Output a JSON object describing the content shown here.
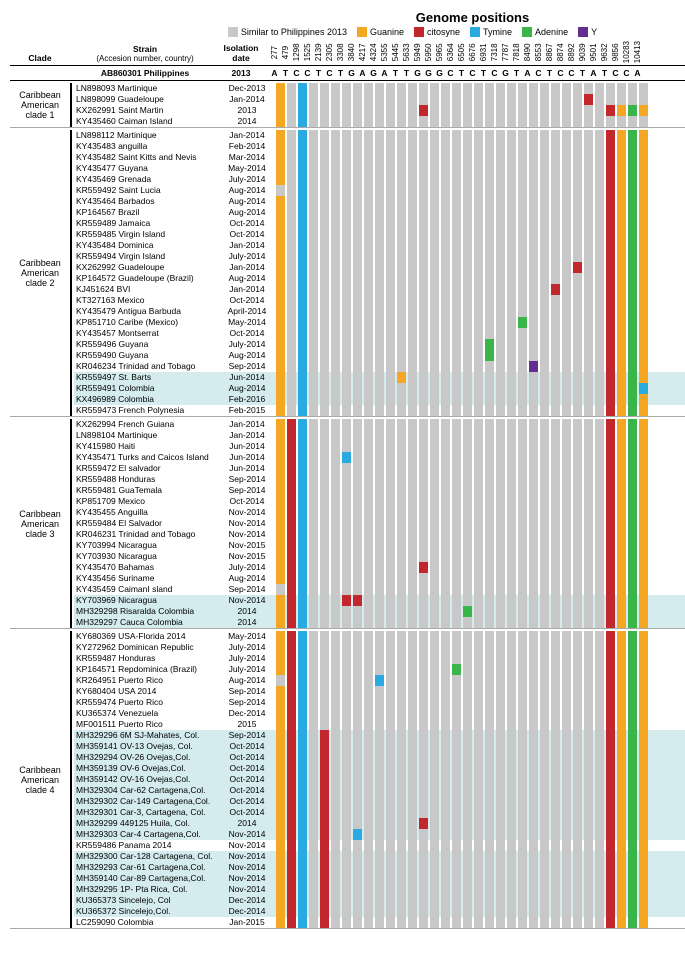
{
  "title": "Genome positions",
  "legend": [
    {
      "label": "Similar to Philippines 2013",
      "color": "#c8c8c8"
    },
    {
      "label": "Guanine",
      "color": "#f5a623"
    },
    {
      "label": "citosyne",
      "color": "#c1272d"
    },
    {
      "label": "Tymine",
      "color": "#29abe2"
    },
    {
      "label": "Adenine",
      "color": "#39b54a"
    },
    {
      "label": "Y",
      "color": "#662d91"
    }
  ],
  "colors": {
    "S": "#c8c8c8",
    "G": "#f5a623",
    "C": "#c1272d",
    "T": "#29abe2",
    "A": "#39b54a",
    "Y": "#662d91",
    "W": "#ffffff"
  },
  "headers": {
    "clade": "Clade",
    "strain_line1": "Strain",
    "strain_line2": "(Accesion number, country)",
    "date": "Isolation\ndate"
  },
  "positions": [
    "277",
    "479",
    "1298",
    "1525",
    "2139",
    "2305",
    "3308",
    "3840",
    "4217",
    "4324",
    "5355",
    "5445",
    "5633",
    "5949",
    "5950",
    "5965",
    "6364",
    "6505",
    "6676",
    "6931",
    "7318",
    "7787",
    "7818",
    "8490",
    "8553",
    "8867",
    "8874",
    "8892",
    "9039",
    "9501",
    "9632",
    "9856",
    "10283",
    "10413"
  ],
  "reference": {
    "strain": "AB860301 Philippines",
    "date": "2013",
    "letters": [
      "A",
      "T",
      "C",
      "C",
      "T",
      "C",
      "T",
      "G",
      "A",
      "G",
      "A",
      "T",
      "T",
      "G",
      "G",
      "G",
      "C",
      "T",
      "C",
      "T",
      "C",
      "G",
      "T",
      "A",
      "C",
      "T",
      "C",
      "C",
      "T",
      "A",
      "T",
      "C",
      "C",
      "A"
    ]
  },
  "clades": [
    {
      "name": "Caribbean American clade 1",
      "rows": [
        {
          "s": "LN898093  Martinique",
          "d": "Dec-2013",
          "c": "GSTSSSSSSSSSSSSSSSSSSSSSSSSSSSSSSS"
        },
        {
          "s": "LN898099 Guadeloupe",
          "d": "Jan-2014",
          "c": "GSTSSSSSSSSSSSSSSSSSSSSSSSSSCSSSSS"
        },
        {
          "s": "KX262991 Saint Martin",
          "d": "2013",
          "c": "GSTSSSSSSSSSSCSSSSSSSSSSSSSSSSCGAG"
        },
        {
          "s": "KY435460 Caiman Island",
          "d": "2014",
          "c": "GSTSSSSSSSSSSSSSSSSSSSSSSSSSSSSSSS"
        }
      ]
    },
    {
      "name": "Caribbean American clade 2",
      "rows": [
        {
          "s": "LN898112 Martinique",
          "d": "Jan-2014",
          "c": "GSTSSSSSSSSSSSSSSSSSSSSSSSSSSSCGAG"
        },
        {
          "s": "KY435483 anguilla",
          "d": "Feb-2014",
          "c": "GSTSSSSSSSSSSSSSSSSSSSSSSSSSSSCGAG"
        },
        {
          "s": "KY435482 Saint Kitts and Nevis",
          "d": "Mar-2014",
          "c": "GSTSSSSSSSSSSSSSSSSSSSSSSSSSSSCGAG"
        },
        {
          "s": "KY435477 Guyana",
          "d": "May-2014",
          "c": "GSTSSSSSSSSSSSSSSSSSSSSSSSSSSSCGAG"
        },
        {
          "s": "KY435469 Grenada",
          "d": "July-2014",
          "c": "GSTSSSSSSSSSSSSSSSSSSSSSSSSSSSCGAG"
        },
        {
          "s": "KR559492 Saint Lucia",
          "d": "Aug-2014",
          "c": "SSTSSSSSSSSSSSSSSSSSSSSSSSSSSSCGAG"
        },
        {
          "s": "KY435464 Barbados",
          "d": "Aug-2014",
          "c": "GSTSSSSSSSSSSSSSSSSSSSSSSSSSSSCGAG"
        },
        {
          "s": "KP164567 Brazil",
          "d": "Aug-2014",
          "c": "GSTSSSSSSSSSSSSSSSSSSSSSSSSSSSCGAG"
        },
        {
          "s": "KR559489 Jamaica",
          "d": "Oct-2014",
          "c": "GSTSSSSSSSSSSSSSSSSSSSSSSSSSSSCGAG"
        },
        {
          "s": "KR559485 Virgin Island",
          "d": "Oct-2014",
          "c": "GSTSSSSSSSSSSSSSSSSSSSSSSSSSSSCGAG"
        },
        {
          "s": "KY435484 Dominica",
          "d": "Jan-2014",
          "c": "GSTSSSSSSSSSSSSSSSSSSSSSSSSSSSCGAG"
        },
        {
          "s": "KR559494 Virgin Island",
          "d": "July-2014",
          "c": "GSTSSSSSSSSSSSSSSSSSSSSSSSSSSSCGAG"
        },
        {
          "s": "KX262992 Guadeloupe",
          "d": "Jan-2014",
          "c": "GSTSSSSSSSSSSSSSSSSSSSSSSSSCSSCGAG"
        },
        {
          "s": "KP164572 Guadeloupe (Brazil)",
          "d": "Aug-2014",
          "c": "GSTSSSSSSSSSSSSSSSSSSSSSSSSSSSCGAG"
        },
        {
          "s": "KJ451624 BVI",
          "d": "Jan-2014",
          "c": "GSTSSSSSSSSSSSSSSSSSSSSSSCSSSSCGAG"
        },
        {
          "s": "KT327163 Mexico",
          "d": "Oct-2014",
          "c": "GSTSSSSSSSSSSSSSSSSSSSSSSSSSSSCGAG"
        },
        {
          "s": "KY435479 Antigua Barbuda",
          "d": "April-2014",
          "c": "GSTSSSSSSSSSSSSSSSSSSSSSSSSSSSCGAG"
        },
        {
          "s": "KP851710 Caribe (Mexico)",
          "d": "May-2014",
          "c": "GSTSSSSSSSSSSSSSSSSSSSASSSSSSSCGAG"
        },
        {
          "s": "KY435457 Montserrat",
          "d": "Oct-2014",
          "c": "GSTSSSSSSSSSSSSSSSSSSSSSSSSSSSCGAG"
        },
        {
          "s": "KR559496 Guyana",
          "d": "July-2014",
          "c": "GSTSSSSSSSSSSSSSSSSASSSSSSSSSSCGAG"
        },
        {
          "s": "KR559490 Guyana",
          "d": "Aug-2014",
          "c": "GSTSSSSSSSSSSSSSSSSASSSSSSSSSSCGAG"
        },
        {
          "s": "KR046234 Trinidad and Tobago",
          "d": "Sep-2014",
          "c": "GSTSSSSSSSSSSSSSSSSSSSSYSSSSSSCGAG"
        },
        {
          "s": "KR559497 St. Barts",
          "d": "Jun-2014",
          "c": "GSTSSSSSSSSGSSSSSSSSSSSSSSSSSSCGAG",
          "h": true
        },
        {
          "s": "KR559491 Colombia",
          "d": "Aug-2014",
          "c": "GSTSSSSSSSSSSSSSSSSSSSSSSSSSSSCGAT",
          "h": true
        },
        {
          "s": "KX496989 Colombia",
          "d": "Feb-2016",
          "c": "GSTSSSSSSSSSSSSSSSSSSSSSSSSSSSCGAG",
          "h": true
        },
        {
          "s": "KR559473  French Polynesia",
          "d": "Feb-2015",
          "c": "GSTSSSSSSSSSSSSSSSSSSSSSSSSSSSCGAG"
        }
      ]
    },
    {
      "name": "Caribbean American clade 3",
      "rows": [
        {
          "s": "KX262994 French Guiana",
          "d": "Jan-2014",
          "c": "GCTSSSSSSSSSSSSSSSSSSSSSSSSSSSCGAG"
        },
        {
          "s": "LN898104 Martinique",
          "d": "Jan-2014",
          "c": "GCTSSSSSSSSSSSSSSSSSSSSSSSSSSSCGAG"
        },
        {
          "s": "KY415980 Haiti",
          "d": "Jun-2014",
          "c": "GCTSSSSSSSSSSSSSSSSSSSSSSSSSSSCGAG"
        },
        {
          "s": "KY435471 Turks and Caicos Island",
          "d": "Jun-2014",
          "c": "GCTSSSTSSSSSSSSSSSSSSSSSSSSSSSCGAG"
        },
        {
          "s": "KR559472 El salvador",
          "d": "Jun-2014",
          "c": "GCTSSSSSSSSSSSSSSSSSSSSSSSSSSSCGAG"
        },
        {
          "s": "KR559488 Honduras",
          "d": "Sep-2014",
          "c": "GCTSSSSSSSSSSSSSSSSSSSSSSSSSSSCGAG"
        },
        {
          "s": "KR559481 GuaTemala",
          "d": "Sep-2014",
          "c": "GCTSSSSSSSSSSSSSSSSSSSSSSSSSSSCGAG"
        },
        {
          "s": "KP851709 Mexico",
          "d": "Oct-2014",
          "c": "GCTSSSSSSSSSSSSSSSSSSSSSSSSSSSCGAG"
        },
        {
          "s": "KY435455 Anguilla",
          "d": "Nov-2014",
          "c": "GCTSSSSSSSSSSSSSSSSSSSSSSSSSSSCGAG"
        },
        {
          "s": "KR559484  El Salvador",
          "d": "Nov-2014",
          "c": "GCTSSSSSSSSSSSSSSSSSSSSSSSSSSSCGAG"
        },
        {
          "s": "KR046231 Trinidad and Tobago",
          "d": "Nov-2014",
          "c": "GCTSSSSSSSSSSSSSSSSSSSSSSSSSSSCGAG"
        },
        {
          "s": "KY703994 Nicaragua",
          "d": "Nov-2015",
          "c": "GCTSSSSSSSSSSSSSSSSSSSSSSSSSSSCGAG"
        },
        {
          "s": "KY703930 Nicaragua",
          "d": "Nov-2015",
          "c": "GCTSSSSSSSSSSSSSSSSSSSSSSSSSSSCGAG"
        },
        {
          "s": "KY435470 Bahamas",
          "d": "July-2014",
          "c": "GCTSSSSSSSSSSCSSSSSSSSSSSSSSSSCGAG"
        },
        {
          "s": "KY435456 Suriname",
          "d": "Aug-2014",
          "c": "GCTSSSSSSSSSSSSSSSSSSSSSSSSSSSCGAG"
        },
        {
          "s": "KY435459 CaimanI sland",
          "d": "Sep-2014",
          "c": "SCTSSSSSSSSSSSSSSSSSSSSSSSSSSSCGAG"
        },
        {
          "s": "KY703969 Nicaragua",
          "d": "Nov-2014",
          "c": "GCTSSSCCSSSSSSSSSSSSSSSSSSSSSSCGAG",
          "h": true
        },
        {
          "s": "MH329298 Risaralda Colombia",
          "d": "2014",
          "c": "GCTSSSSSSSSSSSSSSASSSSSSSSSSSSCGAG",
          "h": true
        },
        {
          "s": "MH329297 Cauca Colombia",
          "d": "2014",
          "c": "GCTSSSSSSSSSSSSSSSSSSSSSSSSSSSCGAG",
          "h": true
        }
      ]
    },
    {
      "name": "Caribbean American clade 4",
      "rows": [
        {
          "s": "KY680369 USA-Florida 2014",
          "d": "May-2014",
          "c": "GCTSSSSSSSSSSSSSSSSSSSSSSSSSSSCGAG"
        },
        {
          "s": "KY272962 Dominican Republic",
          "d": "July-2014",
          "c": "GCTSSSSSSSSSSSSSSSSSSSSSSSSSSSCGAG"
        },
        {
          "s": "KR559487 Honduras",
          "d": "July-2014",
          "c": "GCTSSSSSSSSSSSSSSSSSSSSSSSSSSSCGAG"
        },
        {
          "s": "KP164571 Repdominica (Brazil)",
          "d": "July-2014",
          "c": "GCTSSSSSSSSSSSSSASSSSSSSSSSSSSCGAG"
        },
        {
          "s": "KR264951 Puerto Rico",
          "d": "Aug-2014",
          "c": "SCTSSSSSSTSSSSSSSSSSSSSSSSSSSSCGAG"
        },
        {
          "s": "KY680404 USA 2014",
          "d": "Sep-2014",
          "c": "GCTSSSSSSSSSSSSSSSSSSSSSSSSSSSCGAG"
        },
        {
          "s": "KR559474 Puerto Rico",
          "d": "Sep-2014",
          "c": "GCTSSSSSSSSSSSSSSSSSSSSSSSSSSSCGAG"
        },
        {
          "s": "KU365374 Venezuela",
          "d": "Dec-2014",
          "c": "GCTSSSSSSSSSSSSSSSSSSSSSSSSSSSCGAG"
        },
        {
          "s": "MF001511 Puerto Rico",
          "d": "2015",
          "c": "GCTSSSSSSSSSSSSSSSSSSSSSSSSSSSCGAG"
        },
        {
          "s": "MH329296 6M SJ-Mahates, Col.",
          "d": "Sep-2014",
          "c": "GCTSCSSSSSSSSSSSSSSSSSSSSSSSSSCGAG",
          "h": true
        },
        {
          "s": "MH359141 OV-13 Ovejas, Col.",
          "d": "Oct-2014",
          "c": "GCTSCSSSSSSSSSSSSSSSSSSSSSSSSSCGAG",
          "h": true
        },
        {
          "s": "MH329294 OV-26 Ovejas,Col.",
          "d": "Oct-2014",
          "c": "GCTSCSSSSSSSSSSSSSSSSSSSSSSSSSCGAG",
          "h": true
        },
        {
          "s": "MH359139 OV-6 Ovejas,Col.",
          "d": "Oct-2014",
          "c": "GCTSCSSSSSSSSSSSSSSSSSSSSSSSSSCGAG",
          "h": true
        },
        {
          "s": "MH359142 OV-16 Ovejas,Col.",
          "d": "Oct-2014",
          "c": "GCTSCSSSSSSSSSSSSSSSSSSSSSSSSSCGAG",
          "h": true
        },
        {
          "s": "MH329304 Car-62 Cartagena,Col.",
          "d": "Oct-2014",
          "c": "GCTSCSSSSSSSSSSSSSSSSSSSSSSSSSCGAG",
          "h": true
        },
        {
          "s": "MH329302 Car-149 Cartagena,Col.",
          "d": "Oct-2014",
          "c": "GCTSCSSSSSSSSSSSSSSSSSSSSSSSSSCGAG",
          "h": true
        },
        {
          "s": "MH329301 Car-3, Cartagena, Col.",
          "d": "Oct-2014",
          "c": "GCTSCSSSSSSSSSSSSSSSSSSSSSSSSSCGAG",
          "h": true
        },
        {
          "s": "MH329299 449125 Huila, Col.",
          "d": "2014",
          "c": "GCTSCSSSSSSSSCSSSSSSSSSSSSSSSSCGAG",
          "h": true
        },
        {
          "s": "MH329303 Car-4 Cartagena,Col.",
          "d": "Nov-2014",
          "c": "GCTSCSSTSSSSSSSSSSSSSSSSSSSSSSCGAG",
          "h": true
        },
        {
          "s": "KR559486 Panama 2014",
          "d": "Nov-2014",
          "c": "GCTSCSSSSSSSSSSSSSSSSSSSSSSSSSCGAG"
        },
        {
          "s": "MH329300 Car-128 Cartagena, Col.",
          "d": "Nov-2014",
          "c": "GCTSCSSSSSSSSSSSSSSSSSSSSSSSSSCGAG",
          "h": true
        },
        {
          "s": "MH329293 Car-61 Cartagena,Col.",
          "d": "Nov-2014",
          "c": "GCTSCSSSSSSSSSSSSSSSSSSSSSSSSSCGAG",
          "h": true
        },
        {
          "s": "MH359140 Car-89 Cartagena,Col.",
          "d": "Nov-2014",
          "c": "GCTSCSSSSSSSSSSSSSSSSSSSSSSSSSCGAG",
          "h": true
        },
        {
          "s": "MH329295 1P- Pta Rica, Col.",
          "d": "Nov-2014",
          "c": "GCTSCSSSSSSSSSSSSSSSSSSSSSSSSSCGAG",
          "h": true
        },
        {
          "s": "KU365373 Sincelejo, Col",
          "d": "Dec-2014",
          "c": "GCTSCSSSSSSSSSSSSSSSSSSSSSSSSSCGAG",
          "h": true
        },
        {
          "s": "KU365372  Sincelejo,Col.",
          "d": "Dec-2014",
          "c": "GCTSCSSSSSSSSSSSSSSSSSSSSSSSSSCGAG",
          "h": true
        },
        {
          "s": "LC259090 Colombia",
          "d": "Jan-2015",
          "c": "GCTSCSSSSSSSSSSSSSSSSSSSSSSSSSCGAG"
        }
      ]
    }
  ]
}
